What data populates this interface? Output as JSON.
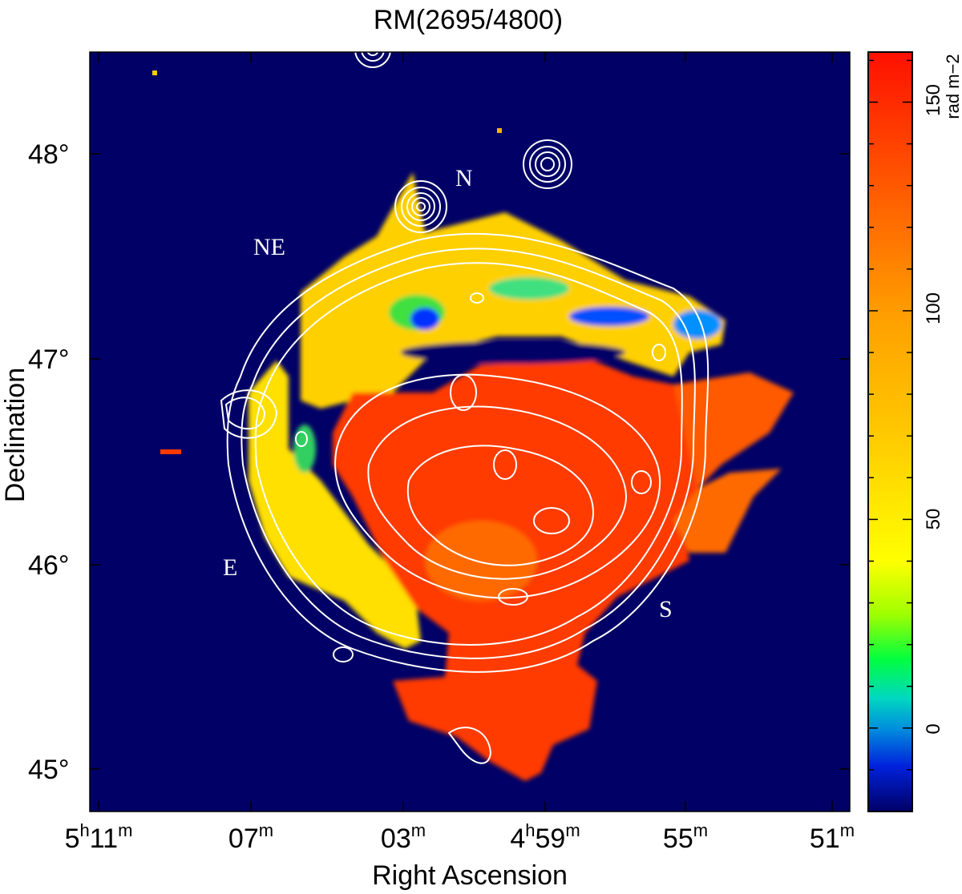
{
  "chart_data": {
    "type": "heatmap",
    "title": "RM(2695/4800)",
    "xlabel": "Right Ascension",
    "ylabel": "Declination",
    "x_ticks": [
      {
        "h": "5",
        "m": "11"
      },
      {
        "h": "",
        "m": "07"
      },
      {
        "h": "",
        "m": "03"
      },
      {
        "h": "4",
        "m": "59"
      },
      {
        "h": "",
        "m": "55"
      },
      {
        "h": "",
        "m": "51"
      }
    ],
    "y_ticks": [
      "48°",
      "47°",
      "46°",
      "45°"
    ],
    "colorbar": {
      "label": "rad m−2",
      "range": [
        -20,
        162
      ],
      "ticks": [
        "150",
        "100",
        "50",
        "0"
      ],
      "tick_values": [
        150,
        100,
        50,
        0
      ]
    },
    "annotations": [
      "N",
      "NE",
      "E",
      "S"
    ],
    "colors": {
      "background": "#000066",
      "high": "#ff1a00",
      "mid": "#ffd800",
      "low": "#0030ff"
    }
  }
}
